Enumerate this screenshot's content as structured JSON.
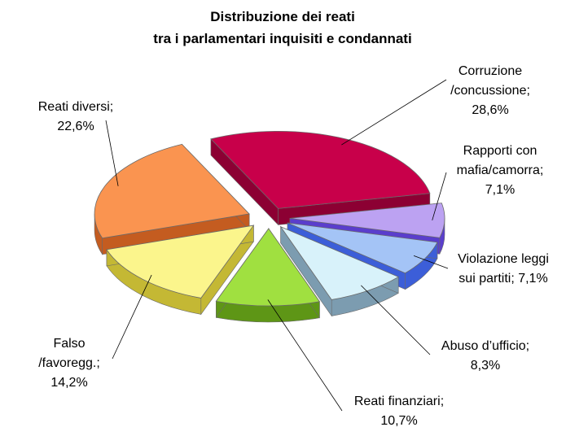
{
  "chart_data": {
    "type": "pie",
    "title": "Distribuzione dei reati",
    "subtitle": "tra i parlamentari inquisiti e condannati",
    "slices": [
      {
        "name": "Corruzione /concussione",
        "value": 28.6,
        "label_lines": [
          "Corruzione",
          "/concussione;",
          "28,6%"
        ],
        "color": "#c8004a",
        "side_color": "#8c0033"
      },
      {
        "name": "Rapporti con mafia/camorra",
        "value": 7.1,
        "label_lines": [
          "Rapporti con",
          "mafia/camorra;",
          "7,1%"
        ],
        "color": "#bca2f2",
        "side_color": "#5a3ecc"
      },
      {
        "name": "Violazione leggi sui partiti",
        "value": 7.1,
        "label_lines": [
          "Violazione leggi",
          "sui partiti; 7,1%"
        ],
        "color": "#a4c4f6",
        "side_color": "#3c5ed8"
      },
      {
        "name": "Abuso d'ufficio",
        "value": 8.3,
        "label_lines": [
          "Abuso d’ufficio;",
          "8,3%"
        ],
        "color": "#d8f2fa",
        "side_color": "#7c9cb0"
      },
      {
        "name": "Reati finanziari",
        "value": 10.7,
        "label_lines": [
          "Reati finanziari;",
          "10,7%"
        ],
        "color": "#a0e040",
        "side_color": "#5e9616"
      },
      {
        "name": "Falso /favoreggiamento",
        "value": 14.2,
        "label_lines": [
          "Falso",
          "/favoregg.;",
          "14,2%"
        ],
        "color": "#fbf58c",
        "side_color": "#c4b834"
      },
      {
        "name": "Reati diversi",
        "value": 22.6,
        "label_lines": [
          "Reati diversi;",
          "22,6%"
        ],
        "color": "#fa9450",
        "side_color": "#c45c20"
      }
    ],
    "legend": "none"
  }
}
